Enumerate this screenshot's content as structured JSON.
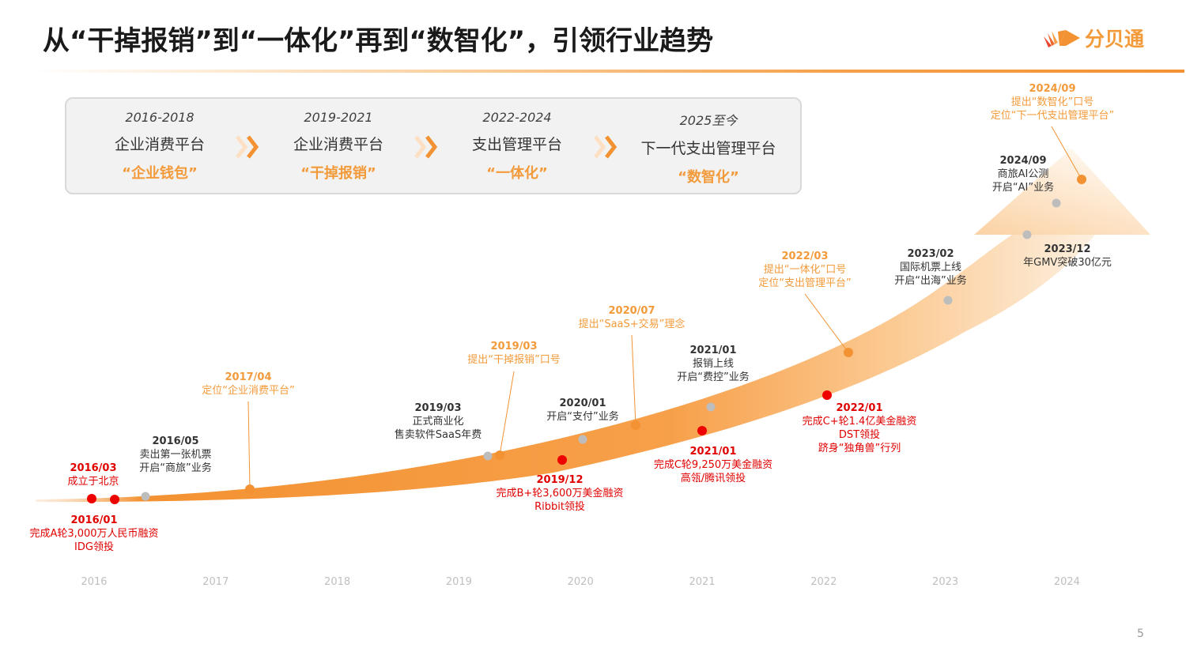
{
  "title": "从“干掉报销”到“一体化”再到“数智化”，引领行业趋势",
  "logo": {
    "text": "分贝通",
    "icon": "fenbeitong-logo-icon"
  },
  "colors": {
    "accent": "#f39232",
    "funding": "#e00000",
    "milestone": "#b3b3b3",
    "positioning": "#f39a3a"
  },
  "phases": [
    {
      "years": "2016-2018",
      "name": "企业消费平台",
      "tag": "“企业钱包”"
    },
    {
      "years": "2019-2021",
      "name": "企业消费平台",
      "tag": "“干掉报销”"
    },
    {
      "years": "2022-2024",
      "name": "支出管理平台",
      "tag": "“一体化”"
    },
    {
      "years": "2025至今",
      "name": "下一代支出管理平台",
      "tag": "“数智化”"
    }
  ],
  "events": [
    {
      "type": "funding",
      "date": "2016/01",
      "lines": [
        "完成A轮3,000万人民币融资",
        "IDG领投"
      ]
    },
    {
      "type": "funding",
      "date": "2016/03",
      "lines": [
        "成立于北京"
      ]
    },
    {
      "type": "milestone",
      "date": "2016/05",
      "lines": [
        "卖出第一张机票",
        "开启“商旅”业务"
      ]
    },
    {
      "type": "positioning",
      "date": "2017/04",
      "lines": [
        "定位“企业消费平台”"
      ]
    },
    {
      "type": "milestone",
      "date": "2019/03",
      "lines": [
        "正式商业化",
        "售卖软件SaaS年费"
      ]
    },
    {
      "type": "positioning",
      "date": "2019/03",
      "lines": [
        "提出“干掉报销”口号"
      ]
    },
    {
      "type": "funding",
      "date": "2019/12",
      "lines": [
        "完成B+轮3,600万美金融资",
        "Ribbit领投"
      ]
    },
    {
      "type": "milestone",
      "date": "2020/01",
      "lines": [
        "开启“支付”业务"
      ]
    },
    {
      "type": "positioning",
      "date": "2020/07",
      "lines": [
        "提出“SaaS+交易”理念"
      ]
    },
    {
      "type": "funding",
      "date": "2021/01",
      "lines": [
        "完成C轮9,250万美金融资",
        "高瓴/腾讯领投"
      ]
    },
    {
      "type": "milestone",
      "date": "2021/01",
      "lines": [
        "报销上线",
        "开启“费控”业务"
      ]
    },
    {
      "type": "funding",
      "date": "2022/01",
      "lines": [
        "完成C+轮1.4亿美金融资",
        "DST领投",
        "跻身“独角兽”行列"
      ]
    },
    {
      "type": "positioning",
      "date": "2022/03",
      "lines": [
        "提出“一体化”口号",
        "定位“支出管理平台”"
      ]
    },
    {
      "type": "milestone",
      "date": "2023/02",
      "lines": [
        "国际机票上线",
        "开启“出海”业务"
      ]
    },
    {
      "type": "milestone",
      "date": "2023/12",
      "lines": [
        "年GMV突破30亿元"
      ]
    },
    {
      "type": "milestone",
      "date": "2024/09",
      "lines": [
        "商旅AI公测",
        "开启“AI”业务"
      ]
    },
    {
      "type": "positioning",
      "date": "2024/09",
      "lines": [
        "提出“数智化”口号",
        "定位“下一代支出管理平台”"
      ]
    }
  ],
  "years": [
    "2016",
    "2017",
    "2018",
    "2019",
    "2020",
    "2021",
    "2022",
    "2023",
    "2024"
  ],
  "page_number": "5"
}
